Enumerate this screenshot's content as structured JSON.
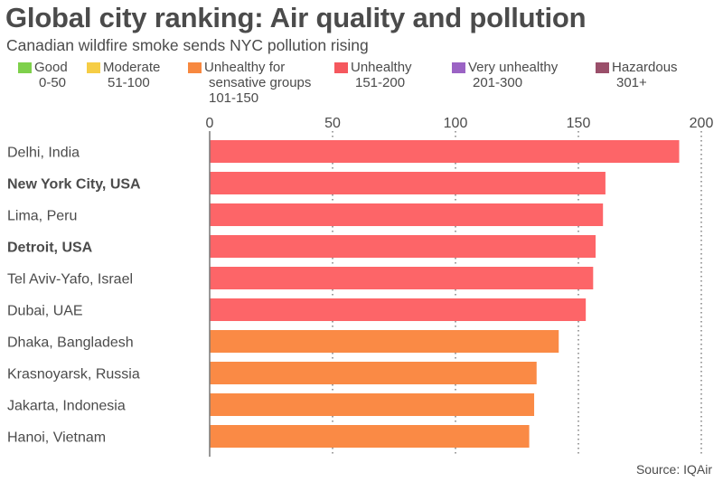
{
  "chart_data": {
    "type": "bar",
    "orientation": "horizontal",
    "title": "Global city ranking: Air quality and pollution",
    "subtitle": "Canadian wildfire smoke sends NYC pollution rising",
    "xlabel": "",
    "ylabel": "",
    "xlim": [
      0,
      200
    ],
    "xticks": [
      0,
      50,
      100,
      150,
      200
    ],
    "xtick_labels": [
      "0",
      "50",
      "100",
      "150",
      "200"
    ],
    "grid": "vertical dotted",
    "categories": [
      "Delhi, India",
      "New York City, USA",
      "Lima, Peru",
      "Detroit, USA",
      "Tel Aviv-Yafo, Israel",
      "Dubai, UAE",
      "Dhaka, Bangladesh",
      "Krasnoyarsk, Russia",
      "Jakarta, Indonesia",
      "Hanoi, Vietnam"
    ],
    "bold_categories": [
      "New York City, USA",
      "Detroit, USA"
    ],
    "values": [
      191,
      161,
      160,
      157,
      156,
      153,
      142,
      133,
      132,
      130
    ],
    "bar_category": [
      "Unhealthy",
      "Unhealthy",
      "Unhealthy",
      "Unhealthy",
      "Unhealthy",
      "Unhealthy",
      "Unhealthy for sensative groups",
      "Unhealthy for sensative groups",
      "Unhealthy for sensative groups",
      "Unhealthy for sensative groups"
    ],
    "legend": [
      {
        "label": "Good",
        "range": "0-50",
        "color": "#7ed04b"
      },
      {
        "label": "Moderate",
        "range": "51-100",
        "color": "#f6cd45"
      },
      {
        "label": "Unhealthy for sensative groups",
        "label_lines": [
          "Unhealthy for",
          "sensative groups"
        ],
        "range": "101-150",
        "color": "#f7883f"
      },
      {
        "label": "Unhealthy",
        "range": "151-200",
        "color": "#f5585e"
      },
      {
        "label": "Very unhealthy",
        "range": "201-300",
        "color": "#9b63c4"
      },
      {
        "label": "Hazardous",
        "range": "301+",
        "color": "#9a4f6a"
      }
    ],
    "legend_position": "top",
    "source": "Source: IQAir"
  },
  "colors": {
    "unhealthy_bar": "#fd6568",
    "sensitive_bar": "#fa8a45",
    "text": "#4b4b4b",
    "axis": "#777777"
  }
}
